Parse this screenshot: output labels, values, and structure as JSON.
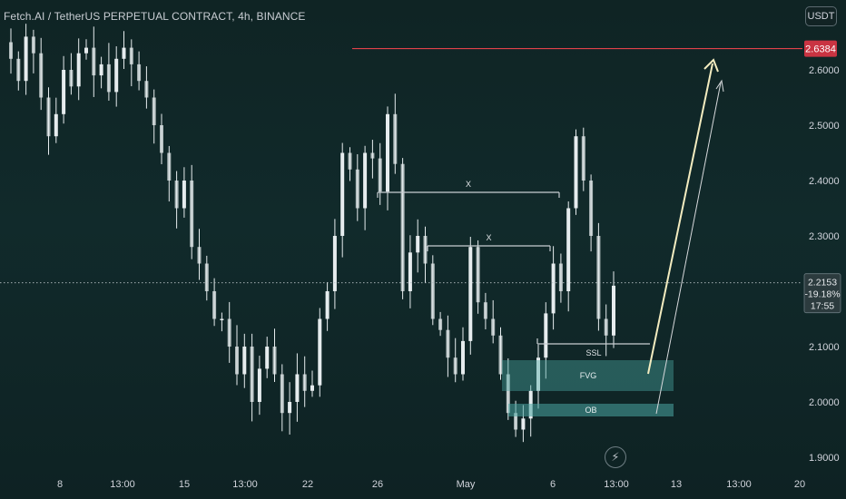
{
  "title": "Fetch.AI / TetherUS PERPETUAL CONTRACT, 4h, BINANCE",
  "currency_button": "USDT",
  "lightning_icon": "⚡",
  "colors": {
    "background": "#102627",
    "candle": "#e6ecee",
    "resistance_line": "#e0424a",
    "resistance_label_bg": "#c93442",
    "zone_fill": "#4aa6a3",
    "arrow_main": "#f3ecc0",
    "arrow_thin": "#d7d9dc",
    "marker_line": "#c8cdd2",
    "axis_text": "#d1d4dc"
  },
  "chart_data": {
    "type": "candlestick",
    "y_axis": {
      "ylim": [
        1.88,
        2.695
      ],
      "ticks": [
        {
          "value": 1.9,
          "label": "1.9000"
        },
        {
          "value": 2.0,
          "label": "2.0000"
        },
        {
          "value": 2.1,
          "label": "2.1000"
        },
        {
          "value": 2.3,
          "label": "2.3000"
        },
        {
          "value": 2.4,
          "label": "2.4000"
        },
        {
          "value": 2.5,
          "label": "2.5000"
        },
        {
          "value": 2.6,
          "label": "2.6000"
        }
      ]
    },
    "x_axis": {
      "ticks": [
        "8",
        "13:00",
        "15",
        "13:00",
        "22",
        "26",
        "May",
        "6",
        "13:00",
        "13",
        "13:00",
        "20"
      ]
    },
    "resistance": {
      "value": 2.6384,
      "label": "2.6384"
    },
    "last_price": {
      "price": "2.2153",
      "change": "-19.18%",
      "countdown": "17:55",
      "value": 2.2153
    },
    "closes": [
      2.62,
      2.58,
      2.66,
      2.63,
      2.55,
      2.48,
      2.52,
      2.6,
      2.57,
      2.63,
      2.64,
      2.59,
      2.61,
      2.56,
      2.62,
      2.64,
      2.61,
      2.58,
      2.55,
      2.5,
      2.45,
      2.4,
      2.35,
      2.4,
      2.28,
      2.25,
      2.2,
      2.15,
      2.15,
      2.1,
      2.05,
      2.1,
      2.0,
      2.06,
      2.1,
      2.05,
      1.98,
      2.0,
      2.05,
      2.02,
      2.03,
      2.15,
      2.2,
      2.3,
      2.45,
      2.42,
      2.35,
      2.45,
      2.44,
      2.38,
      2.52,
      2.43,
      2.2,
      2.27,
      2.3,
      2.25,
      2.15,
      2.13,
      2.08,
      2.05,
      2.11,
      2.28,
      2.18,
      2.15,
      2.12,
      2.05,
      1.98,
      1.95,
      1.97,
      2.02,
      2.08,
      2.16,
      2.25,
      2.2,
      2.35,
      2.48,
      2.4,
      2.3,
      2.15,
      2.12,
      2.21
    ],
    "annotations": [
      {
        "label": "X",
        "type": "level"
      },
      {
        "label": "X",
        "type": "level"
      },
      {
        "label": "SSL",
        "type": "level"
      },
      {
        "label": "FVG",
        "type": "zone"
      },
      {
        "label": "OB",
        "type": "zone"
      }
    ]
  }
}
